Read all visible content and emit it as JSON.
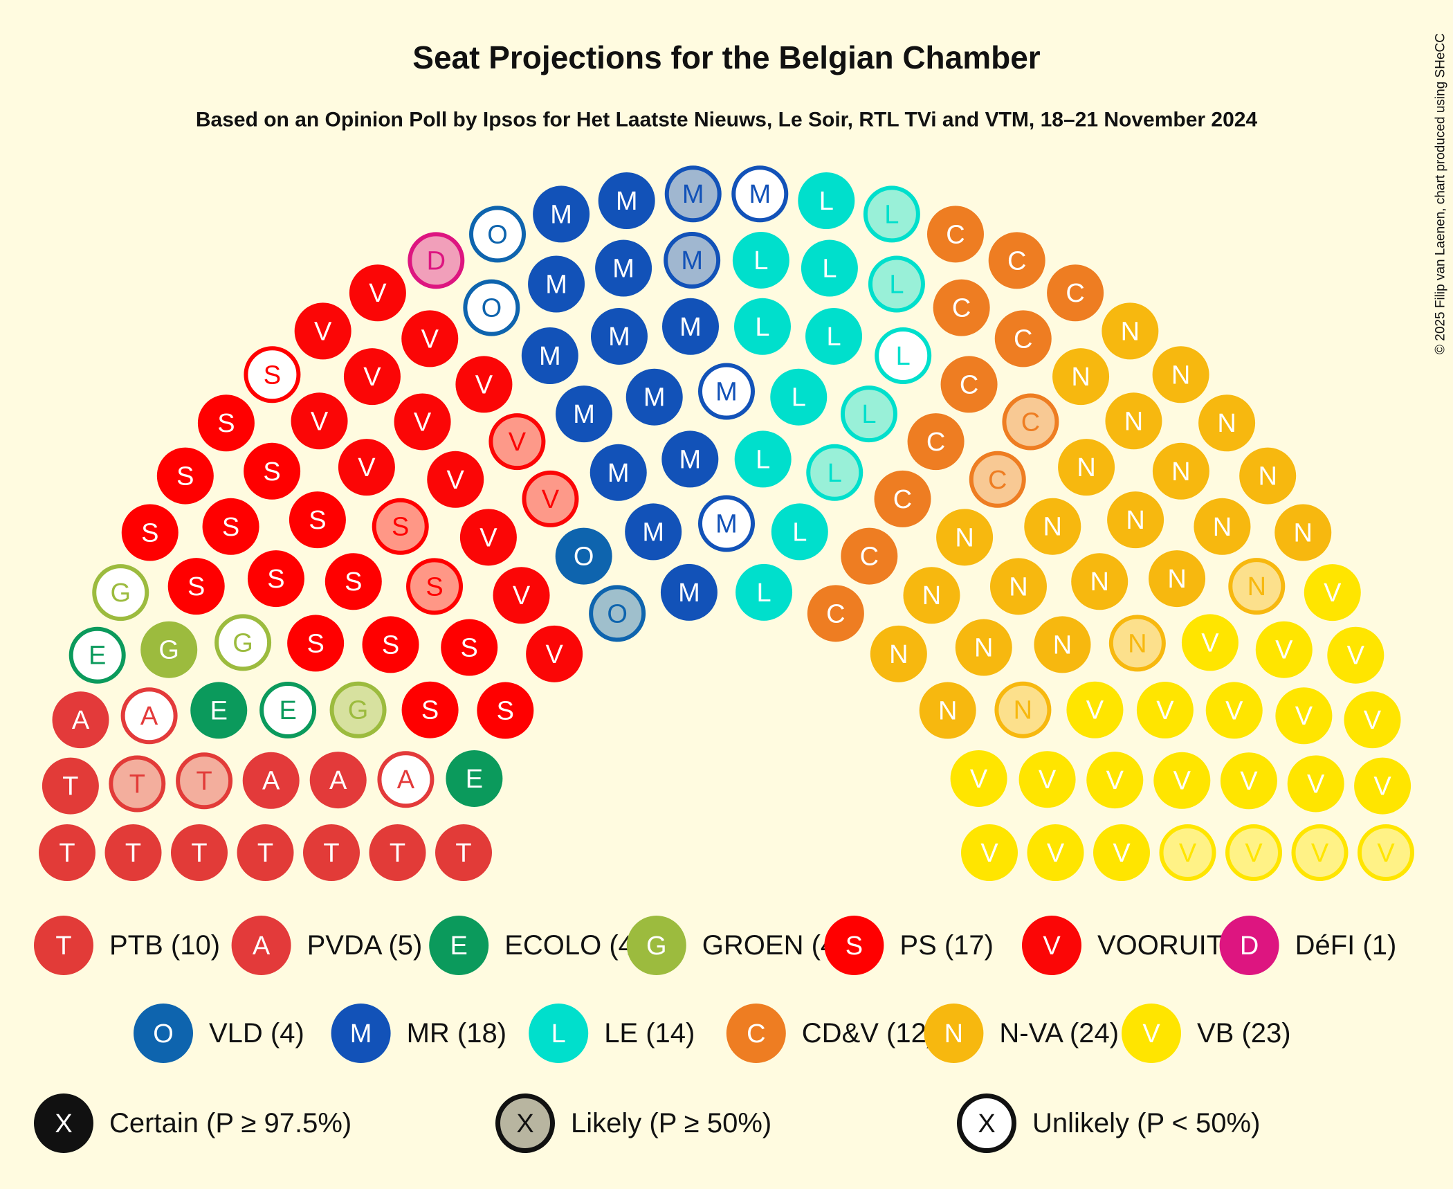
{
  "chart_data": {
    "type": "parliament",
    "title": "Seat Projections for the Belgian Chamber",
    "subtitle": "Based on an Opinion Poll by Ipsos for Het Laatste Nieuws, Le Soir, RTL TVi and VTM, 18–21 November 2024",
    "credit": "© 2025 Filip van Laenen, chart produced using SHeCC",
    "parties": [
      {
        "label": "PTB (10)",
        "letter": "T",
        "color": "#e23b38",
        "seats": 10,
        "certain": 8,
        "likely": 2,
        "unlikely": 0
      },
      {
        "label": "PVDA (5)",
        "letter": "A",
        "color": "#e33a3a",
        "seats": 5,
        "certain": 3,
        "likely": 0,
        "unlikely": 2
      },
      {
        "label": "ECOLO (4)",
        "letter": "E",
        "color": "#0b9a5c",
        "seats": 4,
        "certain": 2,
        "likely": 0,
        "unlikely": 2
      },
      {
        "label": "GROEN (4)",
        "letter": "G",
        "color": "#9cbb3e",
        "seats": 4,
        "certain": 1,
        "likely": 1,
        "unlikely": 2
      },
      {
        "label": "PS (17)",
        "letter": "S",
        "color": "#ff0000",
        "seats": 17,
        "certain": 14,
        "likely": 2,
        "unlikely": 1
      },
      {
        "label": "VOORUIT (14)",
        "letter": "V",
        "color": "#fb0606",
        "seats": 14,
        "certain": 12,
        "likely": 2,
        "unlikely": 0
      },
      {
        "label": "DéFI (1)",
        "letter": "D",
        "color": "#dd1580",
        "seats": 1,
        "certain": 0,
        "likely": 1,
        "unlikely": 0
      },
      {
        "label": "VLD (4)",
        "letter": "O",
        "color": "#0e64ae",
        "seats": 4,
        "certain": 1,
        "likely": 1,
        "unlikely": 2
      },
      {
        "label": "MR (18)",
        "letter": "M",
        "color": "#1252b8",
        "seats": 18,
        "certain": 13,
        "likely": 2,
        "unlikely": 3
      },
      {
        "label": "LE (14)",
        "letter": "L",
        "color": "#00dfcc",
        "seats": 14,
        "certain": 9,
        "likely": 4,
        "unlikely": 1
      },
      {
        "label": "CD&V (12)",
        "letter": "C",
        "color": "#ee7d22",
        "seats": 12,
        "certain": 10,
        "likely": 2,
        "unlikely": 0
      },
      {
        "label": "N-VA (24)",
        "letter": "N",
        "color": "#f7b80f",
        "seats": 24,
        "certain": 21,
        "likely": 3,
        "unlikely": 0
      },
      {
        "label": "VB (23)",
        "letter": "V",
        "color": "#ffe500",
        "seats": 23,
        "certain": 19,
        "likely": 4,
        "unlikely": 0
      }
    ],
    "status_symbol": "X",
    "statuses": [
      {
        "label": "Certain (P ≥ 97.5%)"
      },
      {
        "label": "Likely (P ≥ 50%)"
      },
      {
        "label": "Unlikely (P < 50%)"
      }
    ]
  }
}
